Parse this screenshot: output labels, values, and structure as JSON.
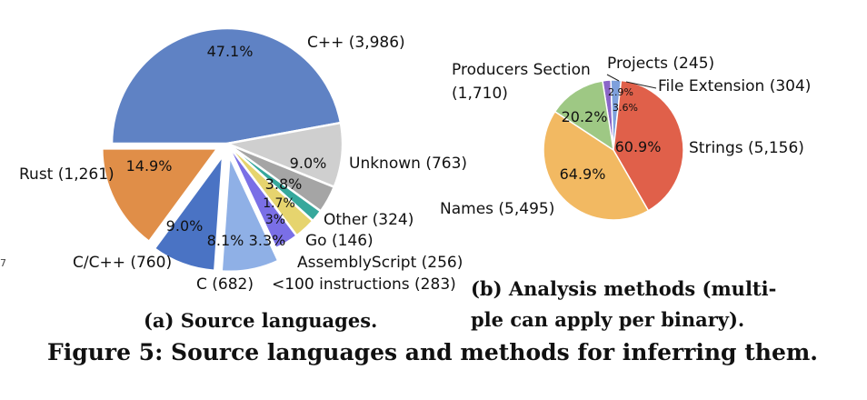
{
  "chart_data": [
    {
      "type": "pie",
      "title": "(a) Source languages.",
      "slices": [
        {
          "label": "C++ (3,986)",
          "value": 3986,
          "pct_label": "47.1%",
          "color": "#5f82c4"
        },
        {
          "label": "Unknown (763)",
          "value": 763,
          "pct_label": "9.0%",
          "color": "#cfcfcf"
        },
        {
          "label": "Other (324)",
          "value": 324,
          "pct_label": "3.8%",
          "color": "#a5a5a5"
        },
        {
          "label": "Go (146)",
          "value": 146,
          "pct_label": "1.7%",
          "color": "#36a89c"
        },
        {
          "label": "AssemblyScript (256)",
          "value": 256,
          "pct_label": "3%",
          "color": "#e6d46e"
        },
        {
          "label": "<100 instructions (283)",
          "value": 283,
          "pct_label": "3.3%",
          "color": "#7a6fe6"
        },
        {
          "label": "C (682)",
          "value": 682,
          "pct_label": "8.1%",
          "color": "#8fb0e6"
        },
        {
          "label": "C/C++ (760)",
          "value": 760,
          "pct_label": "9.0%",
          "color": "#4a73c4"
        },
        {
          "label": "Rust (1,261)",
          "value": 1261,
          "pct_label": "14.9%",
          "color": "#e08e48"
        }
      ]
    },
    {
      "type": "pie",
      "title": "(b) Analysis methods (multi-ple can apply per binary).",
      "slices": [
        {
          "label": "Projects (245)",
          "value": 245,
          "pct_label": "2.9%",
          "color": "#8a66c8"
        },
        {
          "label": "File Extension (304)",
          "value": 304,
          "pct_label": "3.6%",
          "color": "#7ea0dc"
        },
        {
          "label": "Strings (5,156)",
          "value": 5156,
          "pct_label": "60.9%",
          "color": "#e0604a"
        },
        {
          "label": "Names (5,495)",
          "value": 5495,
          "pct_label": "64.9%",
          "color": "#f2b962"
        },
        {
          "label": "Producers Section (1,710)",
          "value": 1710,
          "pct_label": "20.2%",
          "color": "#9ec884"
        }
      ]
    }
  ],
  "captions": {
    "sub_a": "(a) Source languages.",
    "sub_b_line1": "(b) Analysis methods (multi-",
    "sub_b_line2": "ple can apply per binary).",
    "main": "Figure 5: Source languages and methods for inferring them."
  },
  "edge_mark": "7"
}
